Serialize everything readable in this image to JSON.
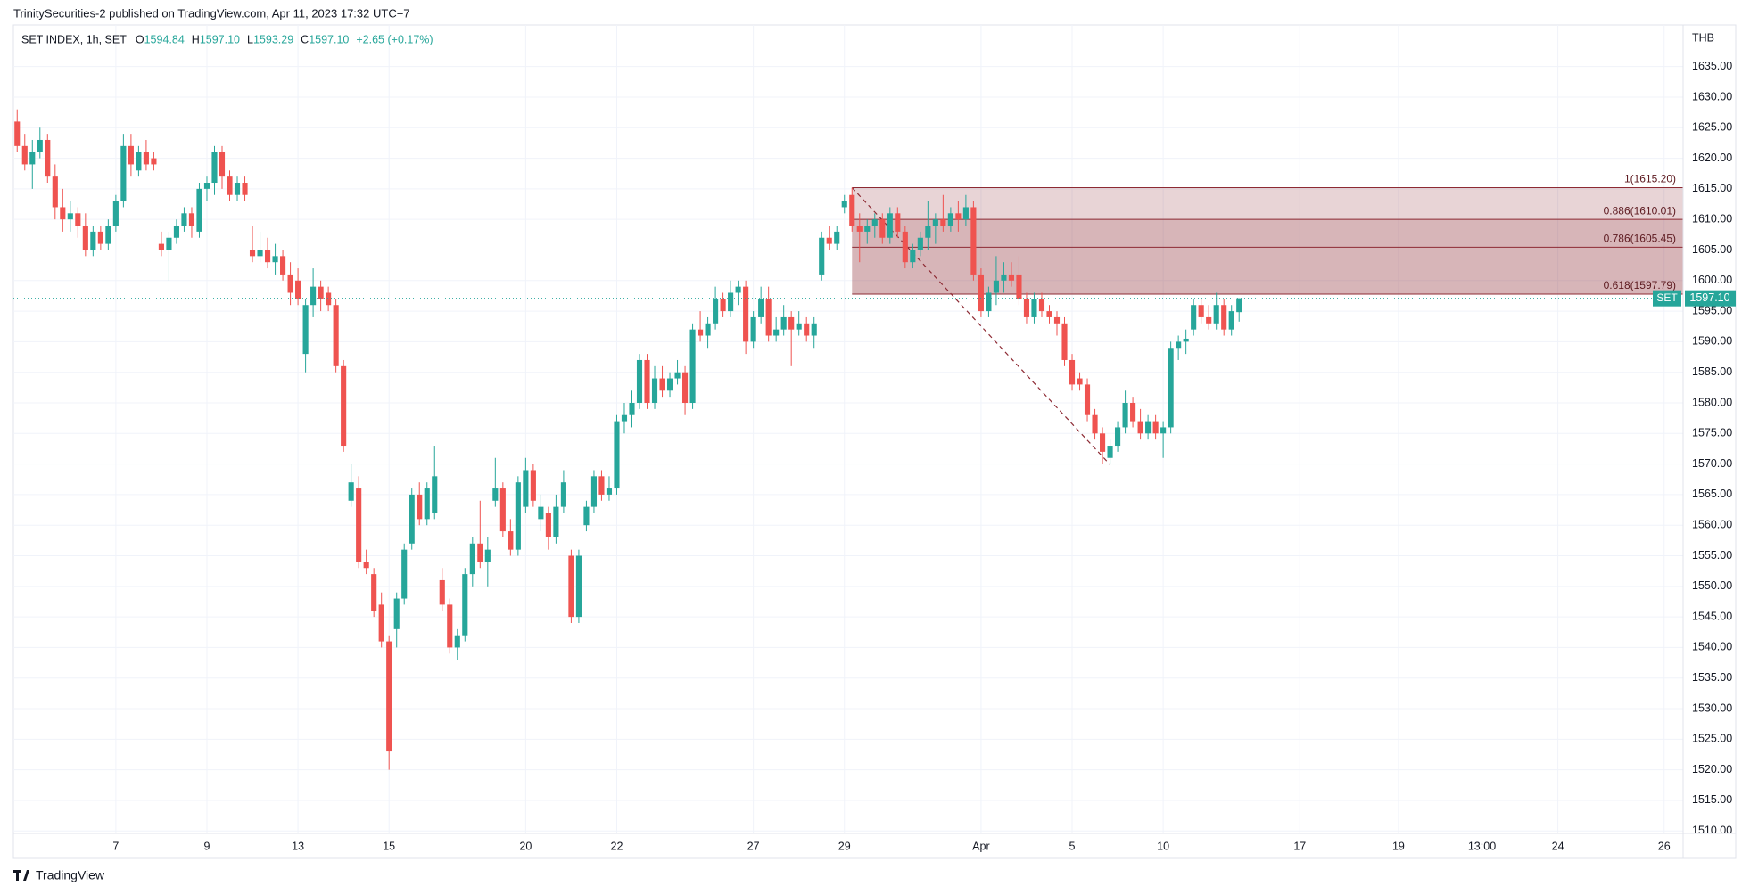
{
  "header": {
    "published": "TrinitySecurities-2 published on TradingView.com, Apr 11, 2023 17:32 UTC+7"
  },
  "footer": {
    "brand": "TradingView"
  },
  "chart_data": {
    "type": "candlestick",
    "legend": {
      "symbol": "SET INDEX, 1h, SET",
      "items": [
        {
          "key": "O",
          "text": "1594.84"
        },
        {
          "key": "H",
          "text": "1597.10"
        },
        {
          "key": "L",
          "text": "1593.29"
        },
        {
          "key": "C",
          "text": "1597.10"
        }
      ],
      "change": "+2.65 (+0.17%)"
    },
    "y_unit": "THB",
    "colors": {
      "up": "#26a69a",
      "down": "#ef5350"
    },
    "grid": true,
    "ylim": [
      1509.6,
      1641.8
    ],
    "yticks": [
      {
        "value": 1510,
        "label": "1510.00"
      },
      {
        "value": 1515,
        "label": "1515.00"
      },
      {
        "value": 1520,
        "label": "1520.00"
      },
      {
        "value": 1525,
        "label": "1525.00"
      },
      {
        "value": 1530,
        "label": "1530.00"
      },
      {
        "value": 1535,
        "label": "1535.00"
      },
      {
        "value": 1540,
        "label": "1540.00"
      },
      {
        "value": 1545,
        "label": "1545.00"
      },
      {
        "value": 1550,
        "label": "1550.00"
      },
      {
        "value": 1555,
        "label": "1555.00"
      },
      {
        "value": 1560,
        "label": "1560.00"
      },
      {
        "value": 1565,
        "label": "1565.00"
      },
      {
        "value": 1570,
        "label": "1570.00"
      },
      {
        "value": 1575,
        "label": "1575.00"
      },
      {
        "value": 1580,
        "label": "1580.00"
      },
      {
        "value": 1585,
        "label": "1585.00"
      },
      {
        "value": 1590,
        "label": "1590.00"
      },
      {
        "value": 1595,
        "label": "1595.00"
      },
      {
        "value": 1600,
        "label": "1600.00"
      },
      {
        "value": 1605,
        "label": "1605.00"
      },
      {
        "value": 1610,
        "label": "1610.00"
      },
      {
        "value": 1615,
        "label": "1615.00"
      },
      {
        "value": 1620,
        "label": "1620.00"
      },
      {
        "value": 1625,
        "label": "1625.00"
      },
      {
        "value": 1630,
        "label": "1630.00"
      },
      {
        "value": 1635,
        "label": "1635.00"
      }
    ],
    "price_tag": {
      "name": "SET",
      "label": "1597.10"
    },
    "fib": {
      "color": "#8d2a33",
      "low": 1569.9,
      "levels": [
        {
          "label": "1(1615.20)",
          "price": 1615.2
        },
        {
          "label": "0.886(1610.01)",
          "price": 1610.01
        },
        {
          "label": "0.786(1605.45)",
          "price": 1605.45
        },
        {
          "label": "0.618(1597.79)",
          "price": 1597.79
        }
      ]
    },
    "categories": [
      null,
      null,
      null,
      null,
      null,
      null,
      null,
      null,
      null,
      null,
      null,
      null,
      null,
      "7",
      null,
      null,
      null,
      null,
      null,
      null,
      null,
      null,
      null,
      null,
      null,
      "9",
      null,
      null,
      null,
      null,
      null,
      null,
      null,
      null,
      null,
      null,
      null,
      "13",
      null,
      null,
      null,
      null,
      null,
      null,
      null,
      null,
      null,
      null,
      null,
      "15",
      null,
      null,
      null,
      null,
      null,
      null,
      null,
      null,
      null,
      null,
      null,
      null,
      null,
      null,
      null,
      null,
      null,
      "20",
      null,
      null,
      null,
      null,
      null,
      null,
      null,
      null,
      null,
      null,
      null,
      "22",
      null,
      null,
      null,
      null,
      null,
      null,
      null,
      null,
      null,
      null,
      null,
      null,
      null,
      null,
      null,
      null,
      null,
      "27",
      null,
      null,
      null,
      null,
      null,
      null,
      null,
      null,
      null,
      null,
      null,
      "29",
      null,
      null,
      null,
      null,
      null,
      null,
      null,
      null,
      null,
      null,
      null,
      null,
      null,
      null,
      null,
      null,
      null,
      "Apr",
      null,
      null,
      null,
      null,
      null,
      null,
      null,
      null,
      null,
      null,
      null,
      "5",
      null,
      null,
      null,
      null,
      null,
      null,
      null,
      null,
      null,
      null,
      null,
      "10",
      null,
      null,
      null,
      null,
      null,
      null,
      null,
      null,
      null,
      null,
      null,
      null,
      null,
      null,
      null,
      null,
      null,
      "17",
      null,
      null,
      null,
      null,
      null,
      null,
      null,
      null,
      null,
      null,
      null,
      null,
      "19",
      null,
      null,
      null,
      null,
      null,
      null,
      null,
      null,
      null,
      null,
      "13:00",
      null,
      null,
      null,
      null,
      null,
      null,
      null,
      null,
      null,
      "24",
      null,
      null,
      null,
      null,
      null,
      null,
      null,
      null,
      null,
      null,
      null,
      null,
      null,
      "26",
      null,
      null
    ],
    "candles": [
      [
        1626,
        1628,
        1621,
        1622
      ],
      [
        1622,
        1624,
        1618,
        1619
      ],
      [
        1619,
        1623,
        1615,
        1621
      ],
      [
        1621,
        1625,
        1620,
        1623
      ],
      [
        1623,
        1624,
        1616,
        1617
      ],
      [
        1617,
        1619,
        1610,
        1612
      ],
      [
        1612,
        1615,
        1608,
        1610
      ],
      [
        1610,
        1613,
        1608,
        1611
      ],
      [
        1611,
        1612,
        1607,
        1609
      ],
      [
        1609,
        1611,
        1604,
        1605
      ],
      [
        1605,
        1609,
        1604,
        1608
      ],
      [
        1608,
        1609,
        1605,
        1606
      ],
      [
        1606,
        1610,
        1605,
        1609
      ],
      [
        1609,
        1614,
        1608,
        1613
      ],
      [
        1613,
        1624,
        1612,
        1622
      ],
      [
        1622,
        1624,
        1617,
        1619
      ],
      [
        1618,
        1622,
        1617,
        1621
      ],
      [
        1621,
        1623,
        1618,
        1619
      ],
      [
        1620,
        1621,
        1618,
        1619
      ],
      [
        1606,
        1608,
        1604,
        1605
      ],
      [
        1605,
        1608,
        1600,
        1607
      ],
      [
        1607,
        1610,
        1606,
        1609
      ],
      [
        1609,
        1612,
        1608,
        1611
      ],
      [
        1611,
        1612,
        1607,
        1609
      ],
      [
        1608,
        1616,
        1607,
        1615
      ],
      [
        1615,
        1617,
        1613,
        1616
      ],
      [
        1616,
        1622,
        1614,
        1621
      ],
      [
        1621,
        1622,
        1615,
        1617
      ],
      [
        1617,
        1618,
        1613,
        1614
      ],
      [
        1614,
        1617,
        1613,
        1616
      ],
      [
        1616,
        1617,
        1613,
        1614
      ],
      [
        1605,
        1609,
        1603,
        1604
      ],
      [
        1604,
        1608,
        1603,
        1605
      ],
      [
        1605,
        1607,
        1602,
        1603
      ],
      [
        1603,
        1606,
        1601,
        1604
      ],
      [
        1604,
        1605,
        1600,
        1601
      ],
      [
        1601,
        1603,
        1596,
        1598
      ],
      [
        1600,
        1602,
        1596,
        1597
      ],
      [
        1588,
        1597,
        1585,
        1596
      ],
      [
        1596,
        1602,
        1594,
        1599
      ],
      [
        1599,
        1600,
        1595,
        1597
      ],
      [
        1598,
        1599,
        1595,
        1596
      ],
      [
        1596,
        1597,
        1585,
        1586
      ],
      [
        1586,
        1587,
        1572,
        1573
      ],
      [
        1564,
        1570,
        1563,
        1567
      ],
      [
        1566,
        1568,
        1553,
        1554
      ],
      [
        1554,
        1556,
        1552,
        1553
      ],
      [
        1552,
        1553,
        1545,
        1546
      ],
      [
        1547,
        1549,
        1540,
        1541
      ],
      [
        1541,
        1542,
        1520,
        1523
      ],
      [
        1543,
        1549,
        1540,
        1548
      ],
      [
        1548,
        1557,
        1547,
        1556
      ],
      [
        1557,
        1566,
        1556,
        1565
      ],
      [
        1565,
        1567,
        1560,
        1561
      ],
      [
        1561,
        1567,
        1560,
        1566
      ],
      [
        1562,
        1573,
        1561,
        1568
      ],
      [
        1551,
        1553,
        1546,
        1547
      ],
      [
        1547,
        1548,
        1539,
        1540
      ],
      [
        1540,
        1543,
        1538,
        1542
      ],
      [
        1542,
        1553,
        1541,
        1552
      ],
      [
        1552,
        1558,
        1550,
        1557
      ],
      [
        1557,
        1564,
        1553,
        1554
      ],
      [
        1554,
        1558,
        1550,
        1556
      ],
      [
        1564,
        1571,
        1563,
        1566
      ],
      [
        1566,
        1567,
        1558,
        1559
      ],
      [
        1559,
        1561,
        1555,
        1556
      ],
      [
        1556,
        1568,
        1555,
        1567
      ],
      [
        1563,
        1571,
        1562,
        1569
      ],
      [
        1569,
        1570,
        1563,
        1564
      ],
      [
        1561,
        1565,
        1559,
        1563
      ],
      [
        1562,
        1563,
        1556,
        1558
      ],
      [
        1558,
        1565,
        1557,
        1563
      ],
      [
        1563,
        1569,
        1562,
        1567
      ],
      [
        1555,
        1556,
        1544,
        1545
      ],
      [
        1545,
        1556,
        1544,
        1555
      ],
      [
        1560,
        1564,
        1559,
        1563
      ],
      [
        1563,
        1569,
        1562,
        1568
      ],
      [
        1568,
        1569,
        1564,
        1565
      ],
      [
        1565,
        1568,
        1564,
        1566
      ],
      [
        1566,
        1578,
        1565,
        1577
      ],
      [
        1577,
        1580,
        1575,
        1578
      ],
      [
        1578,
        1582,
        1576,
        1580
      ],
      [
        1580,
        1588,
        1579,
        1587
      ],
      [
        1587,
        1588,
        1579,
        1580
      ],
      [
        1580,
        1586,
        1579,
        1584
      ],
      [
        1584,
        1586,
        1581,
        1582
      ],
      [
        1582,
        1585,
        1581,
        1584
      ],
      [
        1584,
        1587,
        1583,
        1585
      ],
      [
        1585,
        1586,
        1578,
        1580
      ],
      [
        1580,
        1593,
        1579,
        1592
      ],
      [
        1592,
        1595,
        1590,
        1591
      ],
      [
        1591,
        1594,
        1589,
        1593
      ],
      [
        1593,
        1599,
        1592,
        1597
      ],
      [
        1597,
        1598,
        1594,
        1595
      ],
      [
        1595,
        1600,
        1594,
        1598
      ],
      [
        1598,
        1600,
        1596,
        1599
      ],
      [
        1599,
        1600,
        1588,
        1590
      ],
      [
        1590,
        1595,
        1589,
        1594
      ],
      [
        1594,
        1599,
        1593,
        1597
      ],
      [
        1597,
        1599,
        1590,
        1591
      ],
      [
        1591,
        1594,
        1590,
        1592
      ],
      [
        1592,
        1596,
        1591,
        1594
      ],
      [
        1594,
        1595,
        1586,
        1592
      ],
      [
        1592,
        1595,
        1591,
        1593
      ],
      [
        1593,
        1594,
        1590,
        1591
      ],
      [
        1591,
        1594,
        1589,
        1593
      ],
      [
        1601,
        1608,
        1600,
        1607
      ],
      [
        1607,
        1609,
        1605,
        1606
      ],
      [
        1606,
        1609,
        1605,
        1608
      ],
      [
        1612,
        1614,
        1611,
        1613
      ],
      [
        1614,
        1615.2,
        1608,
        1609
      ],
      [
        1609,
        1611,
        1603,
        1608
      ],
      [
        1608,
        1610,
        1606,
        1609
      ],
      [
        1609,
        1611,
        1607,
        1610
      ],
      [
        1610,
        1611,
        1606,
        1607
      ],
      [
        1607,
        1612,
        1606,
        1611
      ],
      [
        1611,
        1612,
        1607,
        1608
      ],
      [
        1608,
        1609,
        1602,
        1603
      ],
      [
        1603,
        1606,
        1602,
        1605
      ],
      [
        1605,
        1608,
        1604,
        1607
      ],
      [
        1607,
        1613,
        1605,
        1609
      ],
      [
        1609,
        1611,
        1606,
        1610
      ],
      [
        1610,
        1614,
        1608,
        1609
      ],
      [
        1609,
        1612,
        1608,
        1611
      ],
      [
        1611,
        1613,
        1608,
        1610
      ],
      [
        1610,
        1614,
        1609,
        1612
      ],
      [
        1612,
        1613,
        1600,
        1601
      ],
      [
        1601,
        1602,
        1594,
        1595
      ],
      [
        1595,
        1599,
        1594,
        1598
      ],
      [
        1598,
        1604,
        1596,
        1600
      ],
      [
        1600,
        1603,
        1598,
        1601
      ],
      [
        1601,
        1603,
        1599,
        1600
      ],
      [
        1601,
        1604,
        1596,
        1597
      ],
      [
        1597,
        1598,
        1593,
        1594
      ],
      [
        1594,
        1598,
        1593,
        1597
      ],
      [
        1597,
        1598,
        1594,
        1595
      ],
      [
        1595,
        1596,
        1593,
        1594
      ],
      [
        1594,
        1595,
        1591,
        1593
      ],
      [
        1593,
        1594,
        1586,
        1587
      ],
      [
        1587,
        1588,
        1582,
        1583
      ],
      [
        1584,
        1585,
        1582,
        1583
      ],
      [
        1583,
        1584,
        1577,
        1578
      ],
      [
        1578,
        1579,
        1574,
        1575
      ],
      [
        1575,
        1576,
        1570,
        1572
      ],
      [
        1571,
        1574,
        1570,
        1573
      ],
      [
        1573,
        1577,
        1572,
        1576
      ],
      [
        1576,
        1582,
        1575,
        1580
      ],
      [
        1580,
        1581,
        1576,
        1577
      ],
      [
        1577,
        1579,
        1574,
        1575
      ],
      [
        1575,
        1578,
        1574,
        1577
      ],
      [
        1577,
        1578,
        1574,
        1575
      ],
      [
        1575,
        1577,
        1571,
        1576
      ],
      [
        1576,
        1590,
        1575,
        1589
      ],
      [
        1589,
        1591,
        1587,
        1590
      ],
      [
        1590,
        1592,
        1588,
        1590.5
      ],
      [
        1592,
        1597,
        1591,
        1596
      ],
      [
        1596,
        1597,
        1593,
        1594
      ],
      [
        1594,
        1596,
        1592,
        1593
      ],
      [
        1593,
        1598,
        1592,
        1596
      ],
      [
        1596,
        1597,
        1591,
        1592
      ],
      [
        1592,
        1596,
        1591,
        1595
      ],
      [
        1594.84,
        1597.1,
        1593.29,
        1597.1
      ],
      null,
      null,
      null,
      null,
      null,
      null,
      null,
      null,
      null,
      null,
      null,
      null,
      null,
      null,
      null,
      null,
      null,
      null,
      null,
      null,
      null,
      null,
      null,
      null,
      null,
      null,
      null,
      null,
      null,
      null,
      null,
      null,
      null,
      null,
      null,
      null,
      null,
      null,
      null,
      null,
      null,
      null,
      null,
      null,
      null,
      null,
      null,
      null,
      null,
      null,
      null,
      null,
      null,
      null,
      null,
      null,
      null,
      null
    ]
  }
}
